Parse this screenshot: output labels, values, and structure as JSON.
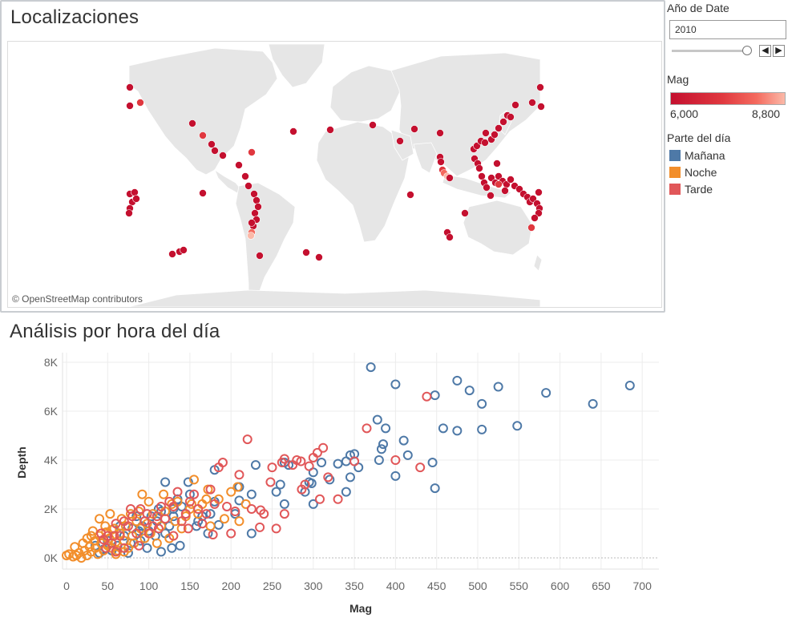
{
  "map": {
    "title": "Localizaciones",
    "attribution": "© OpenStreetMap contributors"
  },
  "filters": {
    "year_title": "Año de Date",
    "year_value": "2010"
  },
  "mag_legend": {
    "title": "Mag",
    "min_label": "6,000",
    "max_label": "8,800",
    "colors": [
      "#c4102f",
      "#e0383f",
      "#f46a5e",
      "#fbb9a8"
    ]
  },
  "part_legend": {
    "title": "Parte del día",
    "items": [
      {
        "label": "Mañana",
        "color": "#4e79a7"
      },
      {
        "label": "Noche",
        "color": "#f28e2b"
      },
      {
        "label": "Tarde",
        "color": "#e15759"
      }
    ]
  },
  "icons": {
    "slider": "slider-thumb-icon",
    "prev": "chevron-left-icon",
    "next": "chevron-right-icon"
  },
  "chart_data": {
    "type": "scatter",
    "title": "Análisis por hora del día",
    "xlabel": "Mag",
    "ylabel": "Depth",
    "xlim": [
      0,
      720
    ],
    "ylim": [
      -400,
      8200
    ],
    "xticks": [
      0,
      50,
      100,
      150,
      200,
      250,
      300,
      350,
      400,
      450,
      500,
      550,
      600,
      650,
      700
    ],
    "xtick_labels": [
      "0",
      "50",
      "100",
      "150",
      "200",
      "250",
      "300",
      "350",
      "400",
      "450",
      "500",
      "550",
      "600",
      "650",
      "700"
    ],
    "yticks": [
      0,
      2000,
      4000,
      6000,
      8000
    ],
    "ytick_labels": [
      "0K",
      "2K",
      "4K",
      "6K",
      "8K"
    ],
    "grid": true,
    "marker": "open-circle",
    "series": [
      {
        "name": "Mañana",
        "color": "#4e79a7",
        "points": [
          [
            370,
            7800
          ],
          [
            400,
            7100
          ],
          [
            475,
            7250
          ],
          [
            490,
            6850
          ],
          [
            505,
            6300
          ],
          [
            525,
            7000
          ],
          [
            583,
            6750
          ],
          [
            685,
            7050
          ],
          [
            640,
            6300
          ],
          [
            448,
            6650
          ],
          [
            458,
            5300
          ],
          [
            475,
            5200
          ],
          [
            505,
            5250
          ],
          [
            548,
            5400
          ],
          [
            378,
            5650
          ],
          [
            388,
            5300
          ],
          [
            410,
            4800
          ],
          [
            383,
            4450
          ],
          [
            385,
            4650
          ],
          [
            415,
            4200
          ],
          [
            445,
            3900
          ],
          [
            400,
            3350
          ],
          [
            448,
            2850
          ],
          [
            380,
            4000
          ],
          [
            350,
            4250
          ],
          [
            345,
            4200
          ],
          [
            340,
            3950
          ],
          [
            355,
            3700
          ],
          [
            330,
            3850
          ],
          [
            345,
            3300
          ],
          [
            340,
            2700
          ],
          [
            310,
            3900
          ],
          [
            300,
            3500
          ],
          [
            295,
            3100
          ],
          [
            290,
            2700
          ],
          [
            300,
            2200
          ],
          [
            270,
            3800
          ],
          [
            265,
            3900
          ],
          [
            260,
            3000
          ],
          [
            255,
            2700
          ],
          [
            230,
            3800
          ],
          [
            225,
            2600
          ],
          [
            210,
            2900
          ],
          [
            210,
            2350
          ],
          [
            205,
            1800
          ],
          [
            180,
            3600
          ],
          [
            180,
            2300
          ],
          [
            175,
            1800
          ],
          [
            165,
            1700
          ],
          [
            160,
            1500
          ],
          [
            150,
            2600
          ],
          [
            148,
            3100
          ],
          [
            140,
            2100
          ],
          [
            135,
            2400
          ],
          [
            130,
            1700
          ],
          [
            125,
            1300
          ],
          [
            120,
            3100
          ],
          [
            115,
            1900
          ],
          [
            110,
            1500
          ],
          [
            108,
            900
          ],
          [
            100,
            1100
          ],
          [
            98,
            400
          ],
          [
            95,
            1500
          ],
          [
            92,
            1300
          ],
          [
            90,
            700
          ],
          [
            88,
            1100
          ],
          [
            85,
            1700
          ],
          [
            80,
            1200
          ],
          [
            78,
            600
          ],
          [
            75,
            200
          ],
          [
            70,
            900
          ],
          [
            65,
            1300
          ],
          [
            62,
            500
          ],
          [
            55,
            300
          ],
          [
            50,
            700
          ],
          [
            45,
            350
          ],
          [
            40,
            200
          ],
          [
            35,
            500
          ],
          [
            120,
            1000
          ],
          [
            128,
            400
          ],
          [
            138,
            500
          ],
          [
            158,
            1300
          ],
          [
            172,
            1000
          ],
          [
            185,
            1350
          ],
          [
            130,
            2000
          ],
          [
            112,
            2000
          ],
          [
            103,
            1700
          ],
          [
            115,
            250
          ],
          [
            225,
            1000
          ],
          [
            265,
            2200
          ],
          [
            320,
            3200
          ],
          [
            298,
            3050
          ]
        ]
      },
      {
        "name": "Noche",
        "color": "#f28e2b",
        "points": [
          [
            0,
            100
          ],
          [
            3,
            150
          ],
          [
            8,
            50
          ],
          [
            12,
            100
          ],
          [
            15,
            200
          ],
          [
            18,
            0
          ],
          [
            20,
            600
          ],
          [
            22,
            300
          ],
          [
            25,
            100
          ],
          [
            28,
            450
          ],
          [
            30,
            250
          ],
          [
            30,
            900
          ],
          [
            32,
            1100
          ],
          [
            35,
            400
          ],
          [
            35,
            700
          ],
          [
            38,
            150
          ],
          [
            40,
            900
          ],
          [
            42,
            600
          ],
          [
            45,
            300
          ],
          [
            47,
            1300
          ],
          [
            48,
            1050
          ],
          [
            50,
            500
          ],
          [
            52,
            800
          ],
          [
            53,
            1800
          ],
          [
            55,
            400
          ],
          [
            58,
            1200
          ],
          [
            60,
            650
          ],
          [
            62,
            300
          ],
          [
            65,
            1000
          ],
          [
            67,
            1600
          ],
          [
            70,
            700
          ],
          [
            72,
            1300
          ],
          [
            75,
            400
          ],
          [
            78,
            1800
          ],
          [
            80,
            900
          ],
          [
            82,
            600
          ],
          [
            85,
            1500
          ],
          [
            88,
            1900
          ],
          [
            90,
            1200
          ],
          [
            92,
            2600
          ],
          [
            95,
            800
          ],
          [
            98,
            1400
          ],
          [
            100,
            2300
          ],
          [
            102,
            1000
          ],
          [
            105,
            1800
          ],
          [
            110,
            600
          ],
          [
            115,
            1300
          ],
          [
            118,
            2600
          ],
          [
            120,
            1900
          ],
          [
            125,
            800
          ],
          [
            128,
            2200
          ],
          [
            132,
            1500
          ],
          [
            135,
            2300
          ],
          [
            140,
            1200
          ],
          [
            145,
            1700
          ],
          [
            150,
            2000
          ],
          [
            152,
            2200
          ],
          [
            155,
            3200
          ],
          [
            160,
            1800
          ],
          [
            165,
            2200
          ],
          [
            170,
            2400
          ],
          [
            172,
            2800
          ],
          [
            175,
            1300
          ],
          [
            185,
            2400
          ],
          [
            192,
            1600
          ],
          [
            200,
            2700
          ],
          [
            208,
            2900
          ],
          [
            210,
            1500
          ],
          [
            218,
            2200
          ],
          [
            10,
            450
          ],
          [
            25,
            800
          ],
          [
            40,
            1600
          ],
          [
            60,
            150
          ],
          [
            70,
            250
          ],
          [
            55,
            1150
          ]
        ]
      },
      {
        "name": "Tarde",
        "color": "#e15759",
        "points": [
          [
            438,
            6600
          ],
          [
            365,
            5300
          ],
          [
            312,
            4500
          ],
          [
            305,
            4300
          ],
          [
            300,
            4100
          ],
          [
            295,
            3750
          ],
          [
            285,
            3950
          ],
          [
            280,
            4000
          ],
          [
            275,
            3800
          ],
          [
            265,
            4050
          ],
          [
            262,
            3900
          ],
          [
            250,
            3700
          ],
          [
            248,
            3100
          ],
          [
            240,
            1800
          ],
          [
            236,
            1950
          ],
          [
            225,
            2000
          ],
          [
            220,
            4850
          ],
          [
            210,
            3400
          ],
          [
            205,
            1900
          ],
          [
            195,
            2100
          ],
          [
            190,
            3900
          ],
          [
            185,
            3700
          ],
          [
            180,
            2200
          ],
          [
            175,
            2800
          ],
          [
            170,
            1800
          ],
          [
            165,
            1400
          ],
          [
            160,
            2000
          ],
          [
            155,
            2600
          ],
          [
            150,
            2300
          ],
          [
            145,
            1800
          ],
          [
            140,
            1500
          ],
          [
            135,
            2700
          ],
          [
            130,
            2100
          ],
          [
            125,
            2300
          ],
          [
            120,
            1600
          ],
          [
            115,
            2100
          ],
          [
            110,
            1700
          ],
          [
            105,
            1300
          ],
          [
            100,
            1000
          ],
          [
            98,
            1800
          ],
          [
            95,
            1500
          ],
          [
            90,
            2000
          ],
          [
            85,
            1000
          ],
          [
            80,
            1700
          ],
          [
            78,
            2000
          ],
          [
            75,
            1300
          ],
          [
            70,
            1500
          ],
          [
            65,
            900
          ],
          [
            60,
            1400
          ],
          [
            58,
            900
          ],
          [
            55,
            600
          ],
          [
            50,
            900
          ],
          [
            48,
            400
          ],
          [
            45,
            750
          ],
          [
            42,
            1000
          ],
          [
            255,
            1200
          ],
          [
            265,
            1800
          ],
          [
            290,
            3000
          ],
          [
            330,
            2400
          ],
          [
            308,
            2400
          ],
          [
            400,
            4000
          ],
          [
            430,
            3700
          ],
          [
            350,
            3950
          ],
          [
            318,
            3300
          ],
          [
            286,
            2800
          ],
          [
            235,
            1250
          ],
          [
            200,
            1000
          ],
          [
            178,
            950
          ],
          [
            148,
            1200
          ],
          [
            130,
            900
          ],
          [
            112,
            1200
          ],
          [
            88,
            500
          ],
          [
            70,
            400
          ],
          [
            60,
            250
          ]
        ]
      }
    ]
  }
}
